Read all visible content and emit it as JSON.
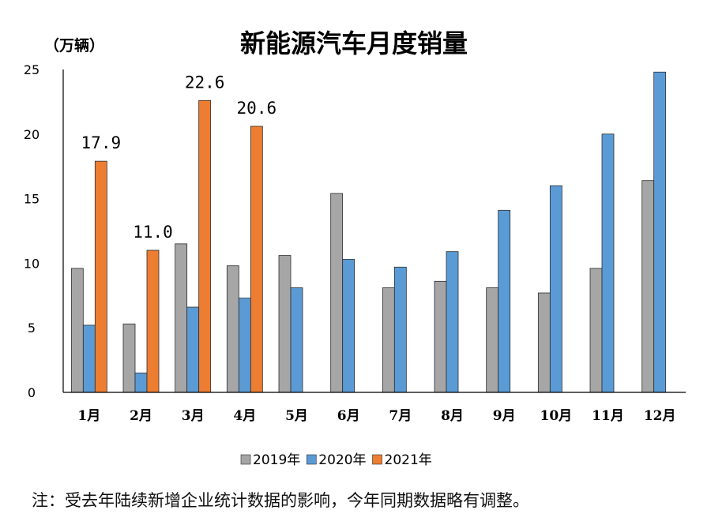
{
  "chart_data": {
    "type": "bar",
    "title": "新能源汽车月度销量",
    "ylabel": "（万辆）",
    "xlabel": "",
    "ylim": [
      0,
      25
    ],
    "yticks": [
      0,
      5,
      10,
      15,
      20,
      25
    ],
    "categories": [
      "1月",
      "2月",
      "3月",
      "4月",
      "5月",
      "6月",
      "7月",
      "8月",
      "9月",
      "10月",
      "11月",
      "12月"
    ],
    "series": [
      {
        "name": "2019年",
        "color": "#a6a6a6",
        "values": [
          9.6,
          5.3,
          11.5,
          9.8,
          10.6,
          15.4,
          8.1,
          8.6,
          8.1,
          7.7,
          9.6,
          16.4
        ]
      },
      {
        "name": "2020年",
        "color": "#5b9bd5",
        "values": [
          5.2,
          1.5,
          6.6,
          7.3,
          8.1,
          10.3,
          9.7,
          10.9,
          14.1,
          16.0,
          20.0,
          24.8
        ]
      },
      {
        "name": "2021年",
        "color": "#ed7d31",
        "values": [
          17.9,
          11.0,
          22.6,
          20.6,
          null,
          null,
          null,
          null,
          null,
          null,
          null,
          null
        ]
      }
    ],
    "data_labels": [
      {
        "series": "2021年",
        "category": "1月",
        "text": "17.9"
      },
      {
        "series": "2021年",
        "category": "2月",
        "text": "11.0"
      },
      {
        "series": "2021年",
        "category": "3月",
        "text": "22.6"
      },
      {
        "series": "2021年",
        "category": "4月",
        "text": "20.6"
      }
    ],
    "legend_position": "bottom",
    "grid": false
  },
  "note": "注：受去年陆续新增企业统计数据的影响，今年同期数据略有调整。"
}
